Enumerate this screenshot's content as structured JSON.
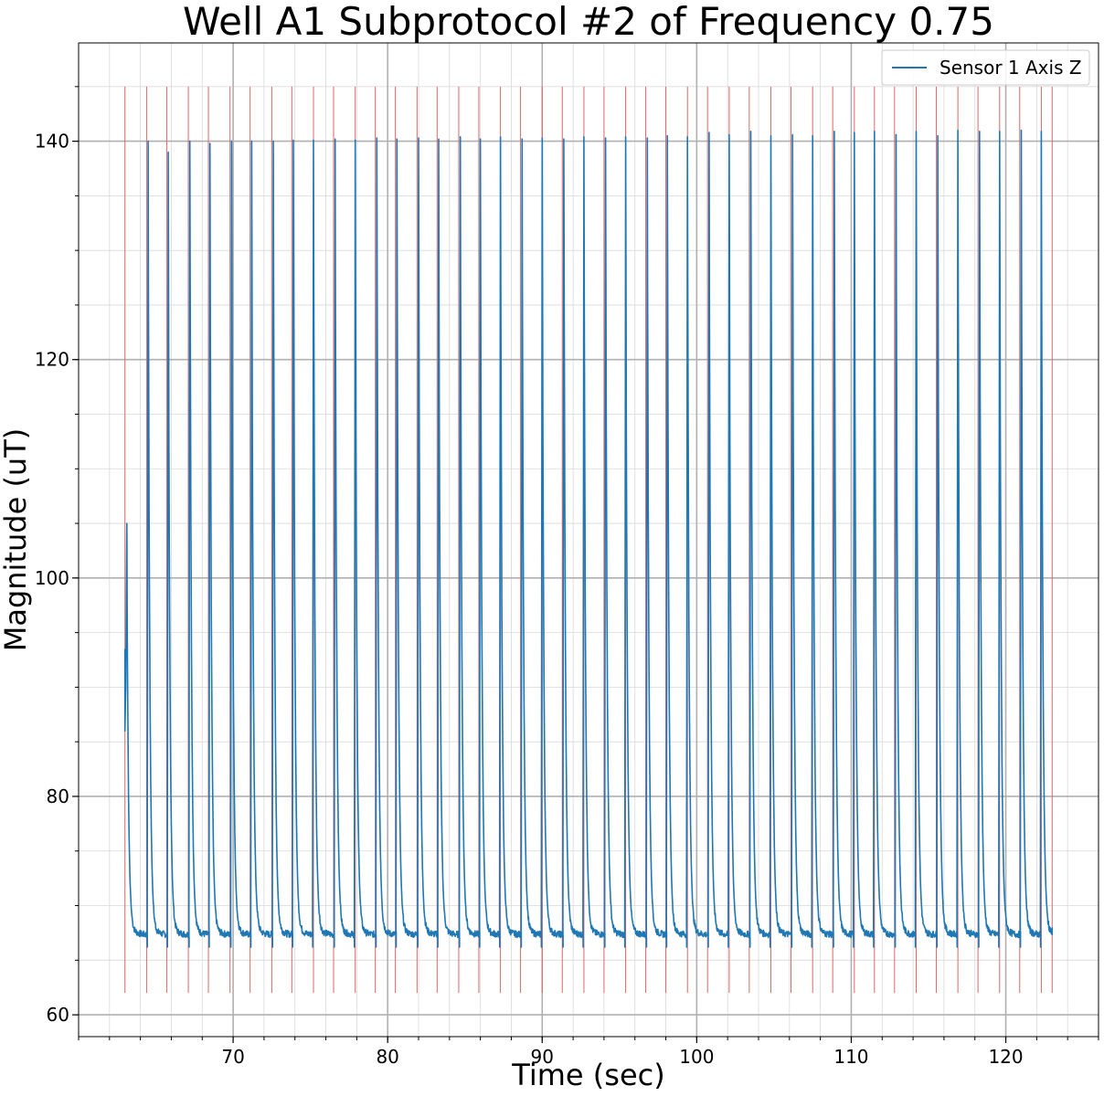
{
  "chart_data": {
    "type": "line",
    "title": "Well A1 Subprotocol #2 of Frequency 0.75",
    "xlabel": "Time (sec)",
    "ylabel": "Magnitude (uT)",
    "xlim": [
      60,
      126
    ],
    "ylim": [
      58,
      149
    ],
    "x_ticks": [
      70,
      80,
      90,
      100,
      110,
      120
    ],
    "x_tick_labels": [
      "70",
      "80",
      "90",
      "100",
      "110",
      "120"
    ],
    "y_ticks": [
      60,
      80,
      100,
      120,
      140
    ],
    "y_tick_labels": [
      "60",
      "80",
      "100",
      "120",
      "140"
    ],
    "x_minor_step": 2,
    "y_minor_step": 5,
    "grid": true,
    "legend": {
      "position": "top-right",
      "entries": [
        "Sensor 1 Axis Z"
      ]
    },
    "colors": {
      "series": "#1f77b4",
      "markers": "#e06666",
      "grid_major": "#b0b0b0",
      "grid_minor": "#d9d9d9"
    },
    "series": [
      {
        "name": "Sensor 1 Axis Z",
        "start": {
          "t": 63.0,
          "value_min": 86,
          "value_initial": 93.5,
          "value_peak": 105
        },
        "peak_times": [
          64.5,
          65.8,
          67.2,
          68.5,
          69.9,
          71.2,
          72.6,
          73.9,
          75.2,
          76.6,
          77.9,
          79.3,
          80.6,
          82.0,
          83.3,
          84.7,
          86.0,
          87.3,
          88.7,
          90.0,
          91.4,
          92.7,
          94.1,
          95.4,
          96.8,
          98.1,
          99.4,
          100.8,
          102.1,
          103.5,
          104.8,
          106.2,
          107.5,
          108.9,
          110.2,
          111.5,
          112.9,
          114.2,
          115.6,
          116.9,
          118.3,
          119.6,
          121.0,
          122.3
        ],
        "peak_values": [
          140,
          139,
          140,
          139.8,
          140,
          140,
          140,
          140.1,
          140.1,
          140.2,
          140.1,
          140.3,
          140.2,
          140.3,
          140.2,
          140.4,
          140.2,
          140.4,
          140.2,
          140.3,
          140.2,
          140.4,
          140.3,
          140.4,
          140.3,
          140.5,
          140.4,
          140.8,
          140.6,
          140.9,
          140.5,
          140.6,
          140.5,
          140.9,
          140.8,
          140.9,
          140.6,
          140.9,
          140.5,
          141.0,
          140.9,
          140.9,
          141.0,
          140.9
        ],
        "baseline": 67.5,
        "trough": 66.2,
        "end": {
          "t": 123.0,
          "value": 68
        }
      }
    ],
    "markers": {
      "color": "#e06666",
      "ymin": 62,
      "ymax": 145,
      "times": [
        63.0,
        64.4,
        65.7,
        67.1,
        68.4,
        69.8,
        71.1,
        72.5,
        73.8,
        75.2,
        76.5,
        77.9,
        79.2,
        80.5,
        81.9,
        83.2,
        84.6,
        85.9,
        87.3,
        88.6,
        90.0,
        91.3,
        92.7,
        94.0,
        95.4,
        96.7,
        98.0,
        99.4,
        100.7,
        102.1,
        103.4,
        104.8,
        106.1,
        107.5,
        108.8,
        110.2,
        111.5,
        112.8,
        114.2,
        115.5,
        116.9,
        118.2,
        119.6,
        120.9,
        122.3,
        123.0
      ]
    }
  }
}
